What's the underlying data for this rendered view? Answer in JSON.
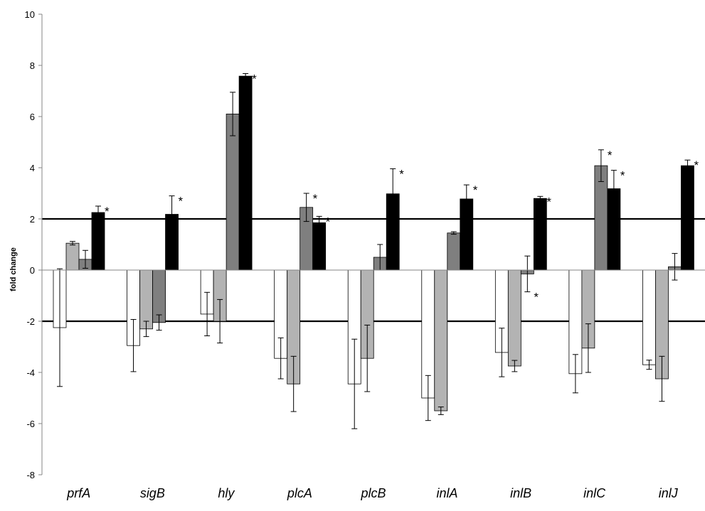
{
  "chart_data": {
    "type": "bar",
    "title": "",
    "xlabel": "",
    "ylabel": "fold change",
    "ylim": [
      -8,
      10
    ],
    "yticks": [
      -8,
      -6,
      -4,
      -2,
      0,
      2,
      4,
      6,
      8,
      10
    ],
    "reference_lines": [
      2,
      -2
    ],
    "categories": [
      "prfA",
      "sigB",
      "hly",
      "plcA",
      "plcB",
      "inlA",
      "inlB",
      "inlC",
      "inlJ"
    ],
    "series": [
      {
        "color": "#ffffff",
        "values": [
          -2.25,
          -2.95,
          -1.72,
          -3.45,
          -4.45,
          -5.0,
          -3.22,
          -4.05,
          -3.7
        ],
        "errors": [
          2.3,
          1.02,
          0.85,
          0.8,
          1.75,
          0.88,
          0.95,
          0.75,
          0.18
        ],
        "significant": [
          false,
          false,
          false,
          false,
          false,
          false,
          false,
          false,
          false
        ]
      },
      {
        "color": "#b3b3b3",
        "values": [
          1.05,
          -2.3,
          -2.0,
          -4.45,
          -3.45,
          -5.5,
          -3.75,
          -3.05,
          -4.25
        ],
        "errors": [
          0.07,
          0.3,
          0.85,
          1.08,
          1.3,
          0.15,
          0.22,
          0.95,
          0.88
        ],
        "significant": [
          false,
          false,
          false,
          false,
          false,
          false,
          false,
          false,
          false
        ]
      },
      {
        "color": "#7f7f7f",
        "values": [
          0.42,
          -2.05,
          6.1,
          2.45,
          0.5,
          1.45,
          -0.15,
          4.08,
          0.13
        ],
        "errors": [
          0.35,
          0.3,
          0.85,
          0.55,
          0.5,
          0.05,
          0.7,
          0.62,
          0.52
        ],
        "significant": [
          false,
          false,
          true,
          true,
          true,
          true,
          true,
          true,
          true
        ]
      },
      {
        "color": "#000000",
        "values": [
          2.25,
          2.18,
          7.58,
          1.85,
          2.98,
          2.78,
          2.8,
          3.18,
          4.08
        ],
        "errors": [
          0.25,
          0.72,
          0.1,
          0.25,
          0.98,
          0.55,
          0.08,
          0.72,
          0.22
        ],
        "significant": [
          true,
          true,
          true,
          true,
          true,
          true,
          true,
          true,
          true
        ]
      }
    ],
    "significance_marker": "*",
    "grid": false,
    "legend": false
  }
}
